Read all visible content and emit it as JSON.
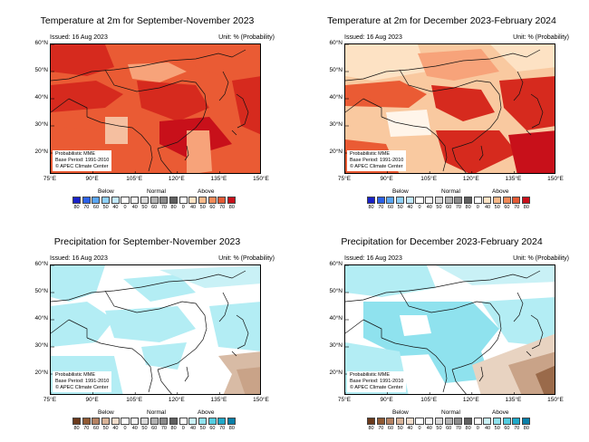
{
  "panels": [
    {
      "id": "temp-son",
      "title": "Temperature at 2m for September-November 2023",
      "issued": "Issued: 16 Aug 2023",
      "unit": "Unit: % (Probability)",
      "kind": "temperature",
      "base": "#ea5b34",
      "patches": [
        {
          "c": "#d62a1e",
          "p": "0,0 60,0 70,25 40,35 0,30"
        },
        {
          "c": "#f7a37a",
          "p": "85,22 130,20 150,30 120,42 90,38"
        },
        {
          "c": "#ea5b34",
          "p": "150,0 233,0 233,30 190,35 160,25"
        },
        {
          "c": "#d62a1e",
          "p": "95,40 160,45 175,70 140,85 100,70"
        },
        {
          "c": "#d62a1e",
          "p": "0,45 50,40 80,55 60,70 0,75"
        },
        {
          "c": "#c8101a",
          "p": "120,85 175,80 200,110 150,125 120,110"
        },
        {
          "c": "#f7a37a",
          "p": "150,95 175,95 178,140 150,144"
        },
        {
          "c": "#d62a1e",
          "p": "200,40 233,35 233,100 210,90"
        },
        {
          "c": "#f5bfa0",
          "p": "60,80 85,80 85,110 60,110"
        },
        {
          "c": "#ea5b34",
          "p": "0,90 55,95 60,140 0,144"
        }
      ]
    },
    {
      "id": "temp-djf",
      "title": "Temperature at 2m for December 2023-February 2024",
      "issued": "Issued: 16 Aug 2023",
      "unit": "Unit: % (Probability)",
      "kind": "temperature",
      "base": "#f9c9a0",
      "patches": [
        {
          "c": "#fde2c4",
          "p": "0,0 80,0 90,30 30,40 0,35"
        },
        {
          "c": "#f7a37a",
          "p": "80,10 150,5 170,30 120,40 90,35"
        },
        {
          "c": "#fde2c4",
          "p": "160,0 233,0 233,25 190,30"
        },
        {
          "c": "#ea5b34",
          "p": "0,45 60,40 90,55 70,70 0,68"
        },
        {
          "c": "#d62a1e",
          "p": "95,45 150,50 165,75 130,85 100,70"
        },
        {
          "c": "#d62a1e",
          "p": "170,40 233,35 233,90 200,95 175,70"
        },
        {
          "c": "#fff5ea",
          "p": "45,75 90,72 95,100 50,102"
        },
        {
          "c": "#d62a1e",
          "p": "100,95 170,95 190,120 140,144 110,130"
        },
        {
          "c": "#ea5b34",
          "p": "0,105 45,110 60,144 0,144"
        },
        {
          "c": "#c8101a",
          "p": "180,100 233,95 233,144 190,144"
        }
      ]
    },
    {
      "id": "prec-son",
      "title": "Precipitation for September-November 2023",
      "issued": "Issued: 16 Aug 2023",
      "unit": "Unit: % (Probability)",
      "kind": "precipitation",
      "base": "#ffffff",
      "patches": [
        {
          "c": "#b3edf4",
          "p": "0,0 60,0 50,30 20,40 0,35"
        },
        {
          "c": "#b3edf4",
          "p": "0,45 40,40 70,60 50,85 0,90"
        },
        {
          "c": "#b3edf4",
          "p": "80,15 140,10 160,30 110,40"
        },
        {
          "c": "#b3edf4",
          "p": "60,50 140,45 160,70 120,85 70,80"
        },
        {
          "c": "#c9f1f6",
          "p": "120,5 233,0 233,20 170,25"
        },
        {
          "c": "#b3edf4",
          "p": "175,45 233,40 233,95 185,90"
        },
        {
          "c": "#b3edf4",
          "p": "100,90 150,85 140,115 105,110"
        },
        {
          "c": "#d8bba5",
          "p": "185,100 233,95 233,144 190,144 200,120"
        },
        {
          "c": "#c9a388",
          "p": "205,115 233,112 233,144 215,144"
        },
        {
          "c": "#b3edf4",
          "p": "0,100 70,100 80,144 0,144"
        }
      ]
    },
    {
      "id": "prec-djf",
      "title": "Precipitation for December 2023-February 2024",
      "issued": "Issued: 16 Aug 2023",
      "unit": "Unit: % (Probability)",
      "kind": "precipitation",
      "base": "#ffffff",
      "patches": [
        {
          "c": "#b3edf4",
          "p": "0,0 90,0 100,25 40,35 0,30"
        },
        {
          "c": "#c9f1f6",
          "p": "100,0 233,0 233,18 140,22"
        },
        {
          "c": "#8fe2ee",
          "p": "20,40 140,40 170,70 150,95 60,100 20,80"
        },
        {
          "c": "#b3edf4",
          "p": "150,40 233,35 233,90 180,85"
        },
        {
          "c": "#b3edf4",
          "p": "0,85 60,95 70,144 0,144"
        },
        {
          "c": "#8fe2ee",
          "p": "90,95 150,95 160,125 110,130"
        },
        {
          "c": "#e8d3c1",
          "p": "140,110 233,75 233,144 150,144"
        },
        {
          "c": "#c9a388",
          "p": "180,110 233,95 233,144 195,144"
        },
        {
          "c": "#9a6a4a",
          "p": "210,120 233,110 233,144 220,144"
        },
        {
          "c": "#ffffff",
          "p": "60,55 90,55 95,75 65,78"
        }
      ]
    }
  ],
  "note_lines": [
    "Probabilistic MME",
    "Base Period: 1991-2010",
    "© APEC Climate Center"
  ],
  "lat_labels": [
    "60°N",
    "50°N",
    "40°N",
    "30°N",
    "20°N"
  ],
  "lon_labels": [
    "75°E",
    "90°E",
    "105°E",
    "120°E",
    "135°E",
    "150°E"
  ],
  "legend": {
    "below_label": "Below",
    "normal_label": "Normal",
    "above_label": "Above",
    "tick_values": [
      "80",
      "70",
      "60",
      "50",
      "40",
      "0",
      "40",
      "50",
      "60",
      "70",
      "80",
      "0",
      "40",
      "50",
      "60",
      "70",
      "80"
    ],
    "colors": {
      "temperature": [
        "#1a22c8",
        "#2d62e8",
        "#5aa6f5",
        "#8fd0fa",
        "#c2e8fc",
        "#ffffff",
        "#f5f5f5",
        "#d9d9d9",
        "#b3b3b3",
        "#8c8c8c",
        "#606060",
        "#ffffff",
        "#fde2c4",
        "#f9b98a",
        "#f08a58",
        "#e45a35",
        "#c8101a"
      ],
      "precipitation": [
        "#6b3a1c",
        "#915a34",
        "#b58262",
        "#d8b398",
        "#f0dccb",
        "#ffffff",
        "#f5f5f5",
        "#d9d9d9",
        "#b3b3b3",
        "#8c8c8c",
        "#606060",
        "#ffffff",
        "#c9f1f6",
        "#8fe2ee",
        "#52cde0",
        "#1fa9c9",
        "#0a7fa8"
      ]
    }
  },
  "coast_color": "#111111"
}
